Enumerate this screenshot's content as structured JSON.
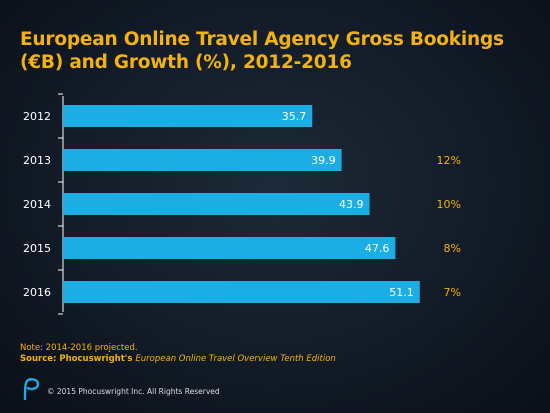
{
  "chart_data": {
    "type": "bar",
    "orientation": "horizontal",
    "title_line1": "European Online Travel Agency Gross Bookings",
    "title_line2": "(€B) and Growth (%), 2012-2016",
    "categories": [
      "2012",
      "2013",
      "2014",
      "2015",
      "2016"
    ],
    "values": [
      35.7,
      39.9,
      43.9,
      47.6,
      51.1
    ],
    "value_labels": [
      "35.7",
      "39.9",
      "43.9",
      "47.6",
      "51.1"
    ],
    "growth_labels": [
      "",
      "12%",
      "10%",
      "8%",
      "7%"
    ],
    "xlim": [
      0,
      56
    ],
    "grid": false,
    "bar_color": "#1aaee5",
    "growth_color": "#f3b20f"
  },
  "footer": {
    "note": "Note: 2014-2016 projected.",
    "source_prefix": "Source: Phocuswright's ",
    "source_title": "European Online Travel Overview Tenth Edition",
    "copyright": "© 2015 Phocuswright Inc. All Rights Reserved",
    "logo_icon": "phocuswright-p-logo-icon"
  }
}
